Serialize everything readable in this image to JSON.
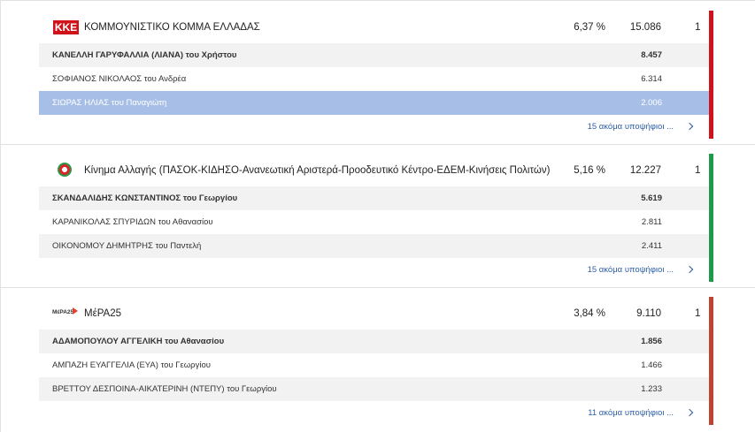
{
  "parties": [
    {
      "logo": "ΚΚΕ",
      "name": "ΚΟΜΜΟΥΝΙΣΤΙΚΟ ΚΟΜΜΑ ΕΛΛΑΔΑΣ",
      "percent": "6,37 %",
      "votes": "15.086",
      "seats": "1",
      "color": "#d0121b",
      "candidates": [
        {
          "name": "ΚΑΝΕΛΛΗ ΓΑΡΥΦΑΛΛΙΑ (ΛΙΑΝΑ) του Χρήστου",
          "votes": "8.457"
        },
        {
          "name": "ΣΟΦΙΑΝΟΣ ΝΙΚΟΛΑΟΣ του Ανδρέα",
          "votes": "6.314"
        },
        {
          "name": "ΣΙΩΡΑΣ ΗΛΙΑΣ του Παναγιώτη",
          "votes": "2.006"
        }
      ],
      "more": "15 ακόμα υποψήφιοι ..."
    },
    {
      "logo": "",
      "name": "Κίνημα Αλλαγής (ΠΑΣΟΚ-ΚΙΔΗΣΟ-Ανανεωτική Αριστερά-Προοδευτικό Κέντρο-ΕΔΕΜ-Κινήσεις Πολιτών)",
      "percent": "5,16 %",
      "votes": "12.227",
      "seats": "1",
      "color": "#1f9a4a",
      "candidates": [
        {
          "name": "ΣΚΑΝΔΑΛΙΔΗΣ ΚΩΝΣΤΑΝΤΙΝΟΣ του Γεωργίου",
          "votes": "5.619"
        },
        {
          "name": "ΚΑΡΑΝΙΚΟΛΑΣ ΣΠΥΡΙΔΩΝ του Αθανασίου",
          "votes": "2.811"
        },
        {
          "name": "ΟΙΚΟΝΟΜΟΥ ΔΗΜΗΤΡΗΣ του Παντελή",
          "votes": "2.411"
        }
      ],
      "more": "15 ακόμα υποψήφιοι ..."
    },
    {
      "logo": "ΜέΡΑ25",
      "name": "ΜέΡΑ25",
      "percent": "3,84 %",
      "votes": "9.110",
      "seats": "1",
      "color": "#c0432f",
      "candidates": [
        {
          "name": "ΑΔΑΜΟΠΟΥΛΟΥ ΑΓΓΕΛΙΚΗ του Αθανασίου",
          "votes": "1.856"
        },
        {
          "name": "ΑΜΠΑΖΗ ΕΥΑΓΓΕΛΙΑ (ΕΥΑ) του Γεωργίου",
          "votes": "1.466"
        },
        {
          "name": "ΒΡΕΤΤΟΥ ΔΕΣΠΟΙΝΑ-ΑΙΚΑΤΕΡΙΝΗ (ΝΤΕΠΥ) του Γεωργίου",
          "votes": "1.233"
        }
      ],
      "more": "11 ακόμα υποψήφιοι ..."
    }
  ]
}
